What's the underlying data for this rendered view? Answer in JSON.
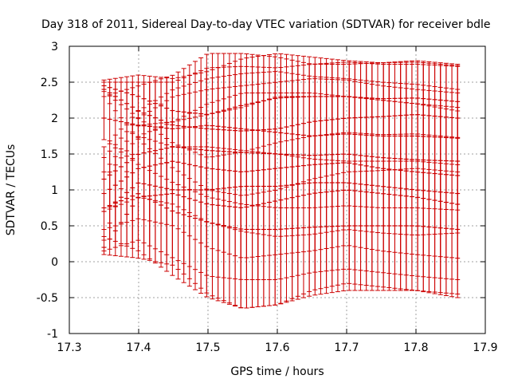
{
  "chart_data": {
    "type": "scatter",
    "title": "Day 318 of 2011, Sidereal Day-to-day VTEC variation (SDTVAR) for receiver bdle",
    "xlabel": "GPS time / hours",
    "ylabel": "SDTVAR / TECUs",
    "xlim": [
      17.3,
      17.9
    ],
    "ylim": [
      -1,
      3
    ],
    "xticks": [
      "17.3",
      "17.4",
      "17.5",
      "17.6",
      "17.7",
      "17.8",
      "17.9"
    ],
    "yticks": [
      "-1",
      "-0.5",
      "0",
      "0.5",
      "1",
      "1.5",
      "2",
      "2.5",
      "3"
    ],
    "grid": true,
    "legend": "none",
    "color": "#cc0000",
    "series": [
      {
        "x": [
          17.35,
          17.4,
          17.45,
          17.5,
          17.55,
          17.6,
          17.65,
          17.7,
          17.75,
          17.8,
          17.86
        ],
        "y": [
          2.45,
          2.3,
          2.1,
          2.05,
          2.18,
          2.28,
          2.3,
          2.3,
          2.27,
          2.28,
          2.23
        ],
        "err": [
          0.08,
          0.3,
          0.45,
          0.6,
          0.65,
          0.62,
          0.55,
          0.5,
          0.5,
          0.5,
          0.5
        ]
      },
      {
        "x": [
          17.35,
          17.4,
          17.45,
          17.5,
          17.55,
          17.6,
          17.65,
          17.7,
          17.75,
          17.8,
          17.86
        ],
        "y": [
          2.4,
          2.1,
          1.9,
          1.85,
          1.82,
          1.85,
          1.95,
          2.0,
          2.02,
          2.05,
          2.0
        ],
        "err": [
          0.1,
          0.4,
          0.6,
          0.85,
          0.9,
          0.85,
          0.8,
          0.75,
          0.75,
          0.75,
          0.75
        ]
      },
      {
        "x": [
          17.35,
          17.4,
          17.45,
          17.5,
          17.55,
          17.6,
          17.65,
          17.7,
          17.75,
          17.8,
          17.86
        ],
        "y": [
          2.0,
          1.9,
          1.85,
          1.9,
          1.85,
          1.8,
          1.75,
          1.78,
          1.75,
          1.75,
          1.72
        ],
        "err": [
          0.3,
          0.55,
          0.75,
          1.0,
          1.05,
          1.05,
          1.0,
          1.0,
          1.0,
          1.0,
          1.0
        ]
      },
      {
        "x": [
          17.35,
          17.4,
          17.45,
          17.5,
          17.55,
          17.6,
          17.65,
          17.7,
          17.75,
          17.8,
          17.86
        ],
        "y": [
          1.15,
          1.5,
          1.6,
          1.55,
          1.52,
          1.5,
          1.48,
          1.5,
          1.45,
          1.42,
          1.4
        ],
        "err": [
          0.45,
          0.6,
          0.8,
          1.0,
          1.1,
          1.15,
          1.1,
          1.05,
          1.05,
          1.05,
          1.0
        ]
      },
      {
        "x": [
          17.35,
          17.4,
          17.45,
          17.5,
          17.55,
          17.6,
          17.65,
          17.7,
          17.75,
          17.8,
          17.86
        ],
        "y": [
          0.95,
          1.3,
          1.4,
          1.3,
          1.25,
          1.3,
          1.35,
          1.38,
          1.3,
          1.25,
          1.2
        ],
        "err": [
          0.5,
          0.7,
          0.9,
          1.1,
          1.2,
          1.2,
          1.2,
          1.15,
          1.15,
          1.15,
          1.15
        ]
      },
      {
        "x": [
          17.35,
          17.4,
          17.45,
          17.5,
          17.55,
          17.6,
          17.65,
          17.7,
          17.75,
          17.8,
          17.86
        ],
        "y": [
          0.7,
          1.1,
          1.0,
          1.0,
          1.05,
          1.05,
          1.1,
          1.1,
          1.05,
          1.0,
          0.95
        ],
        "err": [
          0.55,
          0.8,
          0.95,
          1.2,
          1.3,
          1.3,
          1.25,
          1.2,
          1.2,
          1.2,
          1.2
        ]
      },
      {
        "x": [
          17.35,
          17.4,
          17.45,
          17.5,
          17.55,
          17.6,
          17.65,
          17.7,
          17.75,
          17.8,
          17.86
        ],
        "y": [
          0.2,
          0.9,
          0.95,
          0.8,
          0.75,
          0.85,
          0.95,
          1.0,
          0.95,
          0.9,
          0.8
        ],
        "err": [
          0.1,
          0.85,
          1.0,
          1.25,
          1.4,
          1.45,
          1.35,
          1.3,
          1.3,
          1.3,
          1.3
        ]
      },
      {
        "x": [
          17.35,
          17.4,
          17.45,
          17.5,
          17.55,
          17.6,
          17.65,
          17.7,
          17.75,
          17.8,
          17.86
        ],
        "y": [
          0.75,
          0.95,
          0.7,
          0.55,
          0.45,
          0.45,
          0.48,
          0.5,
          0.5,
          0.5,
          0.45
        ],
        "err": [
          0.4,
          0.8,
          0.9,
          1.05,
          1.1,
          1.05,
          0.95,
          0.9,
          0.9,
          0.9,
          0.9
        ]
      }
    ]
  }
}
